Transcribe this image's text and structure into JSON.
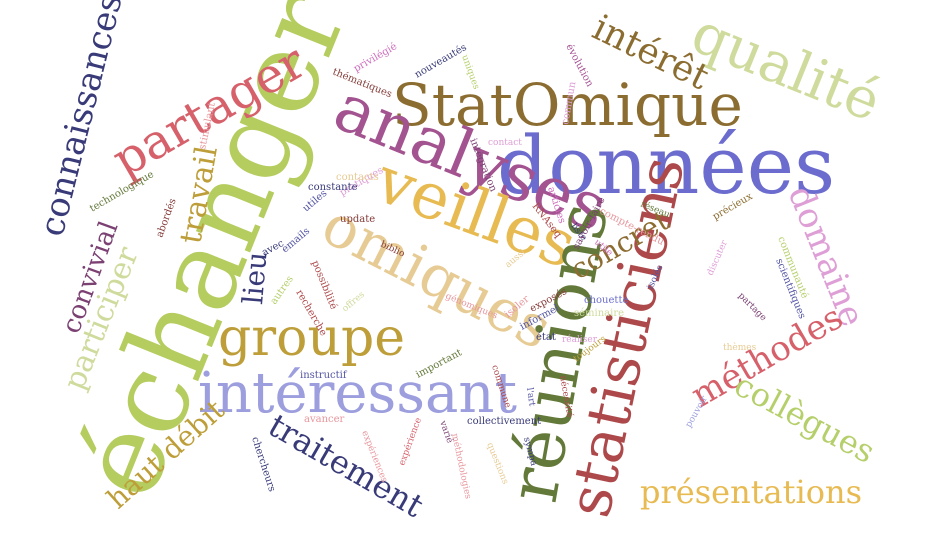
{
  "words": [
    {
      "text": "échanger",
      "color": "#b5cc5f"
    },
    {
      "text": "données",
      "color": "#6b6cce"
    },
    {
      "text": "StatOmique",
      "color": "#8c6d31"
    },
    {
      "text": "analyses",
      "color": "#a35390"
    },
    {
      "text": "veilles",
      "color": "#e7ba52"
    },
    {
      "text": "omiques",
      "color": "#e7cb94"
    },
    {
      "text": "réunions",
      "color": "#637939"
    },
    {
      "text": "statisticiens",
      "color": "#ad494a"
    },
    {
      "text": "intéressant",
      "color": "#9c9ede"
    },
    {
      "text": "qualité",
      "color": "#cedb9c"
    },
    {
      "text": "partager",
      "color": "#d6616b"
    },
    {
      "text": "groupe",
      "color": "#bd9e39"
    },
    {
      "text": "connaissances",
      "color": "#393b79"
    },
    {
      "text": "intérêt",
      "color": "#8c6d31"
    },
    {
      "text": "domaine",
      "color": "#de9ed6"
    },
    {
      "text": "méthodes",
      "color": "#d6616b"
    },
    {
      "text": "collègues",
      "color": "#b5cf6b"
    },
    {
      "text": "présentations",
      "color": "#e7ba52"
    },
    {
      "text": "traitement",
      "color": "#393b79"
    },
    {
      "text": "haut débit",
      "color": "#bd9e39"
    },
    {
      "text": "participer",
      "color": "#cedb9c"
    },
    {
      "text": "convivial",
      "color": "#7b4173"
    },
    {
      "text": "lieu",
      "color": "#393b79"
    },
    {
      "text": "travail",
      "color": "#bd9e39"
    },
    {
      "text": "concret",
      "color": "#8c6d31"
    },
    {
      "text": "contact",
      "color": "#de9ed6"
    },
    {
      "text": "intégration",
      "color": "#7b4173"
    },
    {
      "text": "commun",
      "color": "#de9ed6"
    },
    {
      "text": "évolution",
      "color": "#a55194"
    },
    {
      "text": "nouveautés",
      "color": "#393b79"
    },
    {
      "text": "uniques",
      "color": "#b5cf6b"
    },
    {
      "text": "thématiques",
      "color": "#843c39"
    },
    {
      "text": "privilégié",
      "color": "#ce6dbd"
    },
    {
      "text": "stimulant",
      "color": "#e7969c"
    },
    {
      "text": "pratiques",
      "color": "#de9ed6"
    },
    {
      "text": "technologique",
      "color": "#637939"
    },
    {
      "text": "abordés",
      "color": "#843c39"
    },
    {
      "text": "constante",
      "color": "#393b79"
    },
    {
      "text": "contacts",
      "color": "#e7cb94"
    },
    {
      "text": "utiles",
      "color": "#5254a3"
    },
    {
      "text": "update",
      "color": "#843c39"
    },
    {
      "text": "emails",
      "color": "#5254a3"
    },
    {
      "text": "avec",
      "color": "#393b79"
    },
    {
      "text": "possibilité",
      "color": "#ad494a"
    },
    {
      "text": "biblio",
      "color": "#843c39"
    },
    {
      "text": "recherche",
      "color": "#ad494a"
    },
    {
      "text": "autres",
      "color": "#b5cf6b"
    },
    {
      "text": "offres",
      "color": "#cedb9c"
    },
    {
      "text": "génomiques",
      "color": "#e7969c"
    },
    {
      "text": "aussi",
      "color": "#e7cb94"
    },
    {
      "text": "articles",
      "color": "#ce6dbd"
    },
    {
      "text": "RNAseq",
      "color": "#ad494a"
    },
    {
      "text": "liste",
      "color": "#393b79"
    },
    {
      "text": "savoir-faire",
      "color": "#7b4173"
    },
    {
      "text": "utile",
      "color": "#ce6dbd"
    },
    {
      "text": "compte-rendu",
      "color": "#e7969c"
    },
    {
      "text": "précieux",
      "color": "#8c6d31"
    },
    {
      "text": "réseau",
      "color": "#637939"
    },
    {
      "text": "exposés",
      "color": "#843c39"
    },
    {
      "text": "isoler",
      "color": "#e7969c"
    },
    {
      "text": "informel",
      "color": "#5254a3"
    },
    {
      "text": "état",
      "color": "#393b79"
    },
    {
      "text": "chouette",
      "color": "#6b6ecf"
    },
    {
      "text": "séminaire",
      "color": "#cedb9c"
    },
    {
      "text": "réaliser",
      "color": "#de9ed6"
    },
    {
      "text": "toujours",
      "color": "#bd9e39"
    },
    {
      "text": "isolés",
      "color": "#5254a3"
    },
    {
      "text": "discuter",
      "color": "#de9ed6"
    },
    {
      "text": "communauté",
      "color": "#b5cf6b"
    },
    {
      "text": "scientifiques",
      "color": "#5254a3"
    },
    {
      "text": "partage",
      "color": "#7b4173"
    },
    {
      "text": "thèmes",
      "color": "#e7cb94"
    },
    {
      "text": "pouvoir",
      "color": "#9c9ede"
    },
    {
      "text": "instructif",
      "color": "#5254a3"
    },
    {
      "text": "important",
      "color": "#637939"
    },
    {
      "text": "commune",
      "color": "#ad494a"
    },
    {
      "text": "nécessité",
      "color": "#ad494a"
    },
    {
      "text": "l'art",
      "color": "#5254a3"
    },
    {
      "text": "avancer",
      "color": "#e7969c"
    },
    {
      "text": "collectivement",
      "color": "#393b79"
    },
    {
      "text": "varié",
      "color": "#7b4173"
    },
    {
      "text": "sympa",
      "color": "#393b79"
    },
    {
      "text": "expériences",
      "color": "#e7969c"
    },
    {
      "text": "expérience",
      "color": "#d6616b"
    },
    {
      "text": "questions",
      "color": "#e7cb94"
    },
    {
      "text": "méthodologies",
      "color": "#e7969c"
    },
    {
      "text": "chercheurs",
      "color": "#393b79"
    }
  ]
}
